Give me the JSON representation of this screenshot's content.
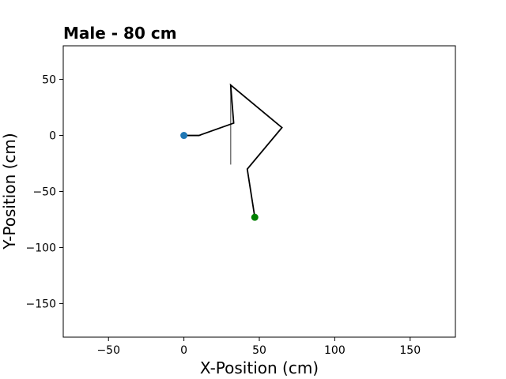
{
  "chart_data": {
    "type": "line",
    "title": "Male - 80 cm",
    "xlabel": "X-Position (cm)",
    "ylabel": "Y-Position (cm)",
    "xlim": [
      -80,
      180
    ],
    "ylim": [
      -180,
      80
    ],
    "xticks": [
      -50,
      0,
      50,
      100,
      150
    ],
    "yticks": [
      50,
      0,
      -50,
      -100,
      -150
    ],
    "xtick_labels": [
      "−50",
      "0",
      "50",
      "100",
      "150"
    ],
    "ytick_labels": [
      "50",
      "0",
      "−50",
      "−100",
      "−150"
    ],
    "grid": false,
    "series": [
      {
        "color": "#000000",
        "points": [
          [
            0,
            0
          ],
          [
            10,
            0
          ],
          [
            33,
            11
          ],
          [
            31,
            45
          ],
          [
            65,
            7
          ],
          [
            42,
            -30
          ],
          [
            47,
            -73
          ]
        ]
      }
    ],
    "reference_line": {
      "color": "#777777",
      "points": [
        [
          31,
          45
        ],
        [
          31,
          -26
        ]
      ]
    },
    "markers": [
      {
        "x": 0,
        "y": 0,
        "color": "#1f77b4"
      },
      {
        "x": 47,
        "y": -73,
        "color": "#008000"
      }
    ]
  }
}
